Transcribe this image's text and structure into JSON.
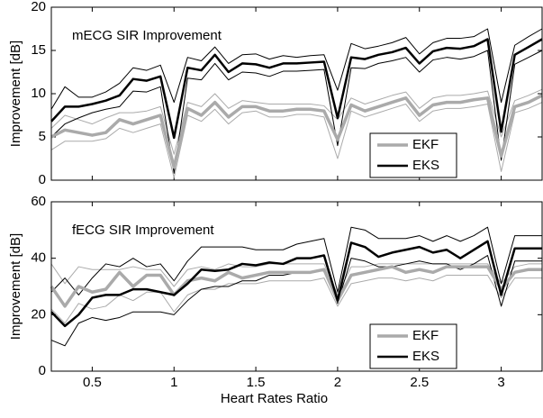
{
  "chart_data": [
    {
      "type": "line",
      "title": "mECG SIR Improvement",
      "ylabel": "Improvement [dB]",
      "x": [
        0.25,
        0.333,
        0.417,
        0.5,
        0.583,
        0.667,
        0.75,
        0.833,
        0.917,
        1,
        1.083,
        1.167,
        1.25,
        1.333,
        1.417,
        1.5,
        1.583,
        1.667,
        1.75,
        1.833,
        1.917,
        2,
        2.083,
        2.167,
        2.25,
        2.333,
        2.417,
        2.5,
        2.583,
        2.667,
        2.75,
        2.833,
        2.917,
        3,
        3.083,
        3.167,
        3.25
      ],
      "xlim": [
        0.25,
        3.25
      ],
      "xticks": [
        0.5,
        1,
        1.5,
        2,
        2.5,
        3
      ],
      "ylim": [
        0,
        20
      ],
      "yticks": [
        0,
        5,
        10,
        15,
        20
      ],
      "legend": "lower right",
      "series": [
        {
          "name": "EKF",
          "color": "#aaaaaa",
          "values": [
            5.0,
            5.8,
            5.5,
            5.2,
            5.5,
            7.0,
            6.5,
            7.0,
            7.5,
            1.5,
            8.3,
            7.5,
            9.0,
            7.3,
            8.5,
            8.5,
            8.0,
            8.0,
            8.2,
            8.2,
            8.0,
            4.7,
            8.7,
            8.0,
            8.5,
            9.0,
            9.5,
            7.5,
            8.7,
            9.0,
            9.0,
            9.3,
            9.5,
            2.8,
            8.5,
            9.0,
            9.8
          ],
          "upper": [
            6.0,
            7.5,
            7.0,
            6.5,
            7.2,
            7.8,
            7.8,
            8.0,
            8.5,
            3.0,
            9.0,
            8.5,
            10.0,
            8.3,
            9.2,
            9.0,
            8.8,
            8.8,
            8.8,
            8.8,
            8.6,
            7.0,
            9.5,
            8.8,
            9.3,
            9.8,
            10.2,
            8.3,
            9.5,
            9.8,
            9.8,
            10.0,
            10.3,
            5.0,
            9.2,
            9.8,
            10.5
          ],
          "lower": [
            3.5,
            4.5,
            4.5,
            4.5,
            4.8,
            6.0,
            5.5,
            6.0,
            6.5,
            0.3,
            7.5,
            6.8,
            8.2,
            6.5,
            7.8,
            8.0,
            7.3,
            7.3,
            7.6,
            7.6,
            7.3,
            2.5,
            8.0,
            7.3,
            7.8,
            8.3,
            8.8,
            6.8,
            8.0,
            8.3,
            8.3,
            8.5,
            8.8,
            1.0,
            7.8,
            8.3,
            9.0
          ]
        },
        {
          "name": "EKS",
          "color": "#000000",
          "values": [
            6.8,
            8.5,
            8.5,
            8.8,
            9.2,
            9.8,
            11.7,
            11.5,
            12.0,
            4.9,
            13.0,
            12.7,
            14.5,
            12.5,
            13.5,
            13.4,
            13.0,
            13.5,
            13.5,
            13.6,
            13.7,
            7.2,
            14.2,
            14.0,
            14.5,
            14.8,
            15.3,
            13.5,
            14.9,
            15.3,
            15.2,
            15.5,
            16.3,
            5.6,
            14.5,
            15.4,
            16.3
          ],
          "upper": [
            8.2,
            10.8,
            9.6,
            9.6,
            10.2,
            11.2,
            13.0,
            12.7,
            13.3,
            9.0,
            14.2,
            13.8,
            15.4,
            13.5,
            14.5,
            14.6,
            14.0,
            14.4,
            14.2,
            14.4,
            14.5,
            10.4,
            15.8,
            15.2,
            15.5,
            15.9,
            16.5,
            14.6,
            15.9,
            16.4,
            16.4,
            16.6,
            17.5,
            9.0,
            15.6,
            16.6,
            17.5
          ],
          "lower": [
            5.0,
            6.5,
            7.2,
            7.8,
            8.2,
            8.5,
            10.3,
            10.2,
            10.8,
            0.8,
            11.8,
            11.6,
            13.5,
            11.6,
            12.5,
            12.4,
            12.0,
            12.6,
            12.6,
            12.7,
            12.8,
            4.0,
            13.0,
            12.9,
            13.5,
            13.8,
            14.2,
            12.5,
            13.9,
            14.2,
            14.0,
            14.3,
            15.0,
            2.3,
            13.4,
            14.2,
            15.0
          ]
        }
      ]
    },
    {
      "type": "line",
      "title": "fECG SIR Improvement",
      "ylabel": "Improvement [dB]",
      "xlabel": "Heart Rates Ratio",
      "x": [
        0.25,
        0.333,
        0.417,
        0.5,
        0.583,
        0.667,
        0.75,
        0.833,
        0.917,
        1,
        1.083,
        1.167,
        1.25,
        1.333,
        1.417,
        1.5,
        1.583,
        1.667,
        1.75,
        1.833,
        1.917,
        2,
        2.083,
        2.167,
        2.25,
        2.333,
        2.417,
        2.5,
        2.583,
        2.667,
        2.75,
        2.833,
        2.917,
        3,
        3.083,
        3.167,
        3.25
      ],
      "xlim": [
        0.25,
        3.25
      ],
      "xticks": [
        0.5,
        1,
        1.5,
        2,
        2.5,
        3
      ],
      "ylim": [
        0,
        60
      ],
      "yticks": [
        0,
        20,
        40,
        60
      ],
      "legend": "lower right",
      "series": [
        {
          "name": "EKF",
          "color": "#aaaaaa",
          "values": [
            30,
            23,
            30,
            28,
            29,
            35,
            30,
            34,
            34,
            27,
            32,
            33,
            32,
            35,
            33,
            34,
            35,
            35,
            35,
            35,
            36,
            25,
            34,
            35,
            36,
            37,
            35,
            36,
            35,
            37,
            37,
            37,
            37,
            29,
            35,
            36,
            36
          ],
          "upper": [
            38,
            31,
            37,
            36,
            36,
            36,
            37,
            36,
            36,
            30,
            36,
            37,
            36,
            38,
            37,
            37,
            38,
            38,
            38,
            38,
            38,
            27,
            37,
            37,
            38,
            38,
            38,
            38,
            38,
            38,
            38,
            38,
            38,
            31,
            37,
            38,
            38
          ],
          "lower": [
            22,
            17,
            24,
            22,
            23,
            27,
            25,
            28,
            28,
            21,
            27,
            29,
            29,
            31,
            31,
            31,
            32,
            32,
            32,
            32,
            33,
            23,
            31,
            32,
            33,
            33,
            32,
            33,
            32,
            34,
            34,
            34,
            34,
            26,
            33,
            33,
            33
          ]
        },
        {
          "name": "EKS",
          "color": "#000000",
          "values": [
            21,
            16,
            20,
            26,
            27,
            27,
            29,
            29,
            28,
            27,
            31,
            36,
            35.5,
            36,
            38,
            37.5,
            38.5,
            38,
            40,
            40,
            41,
            25,
            45.5,
            44,
            40.5,
            42,
            43,
            44,
            42,
            43,
            40,
            43,
            46,
            27,
            43.5,
            43.5,
            43.5
          ],
          "upper": [
            28,
            33,
            27,
            33,
            38,
            37,
            40,
            37,
            38,
            32,
            39,
            44,
            44,
            44,
            44,
            43,
            43,
            43,
            45,
            46,
            47,
            28,
            51,
            50,
            47,
            47,
            47,
            48,
            46,
            48,
            46,
            48,
            51,
            31,
            48,
            48,
            48
          ],
          "lower": [
            11,
            9,
            17,
            19,
            18,
            19,
            21,
            21,
            21,
            20,
            25,
            29,
            30,
            30,
            32,
            32,
            34,
            34,
            35,
            35,
            36,
            24,
            40,
            39,
            37,
            37,
            38,
            39,
            38,
            38,
            36,
            38,
            41,
            23,
            39,
            39,
            39
          ]
        }
      ]
    }
  ]
}
